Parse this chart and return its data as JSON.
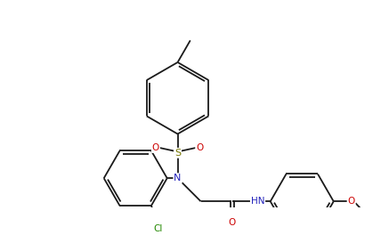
{
  "bg_color": "#ffffff",
  "line_color": "#1a1a1a",
  "atom_colors": {
    "O": "#cc0000",
    "N": "#2222bb",
    "S": "#777700",
    "Cl": "#228800",
    "C": "#1a1a1a"
  },
  "figsize": [
    4.37,
    2.64
  ],
  "dpi": 100
}
